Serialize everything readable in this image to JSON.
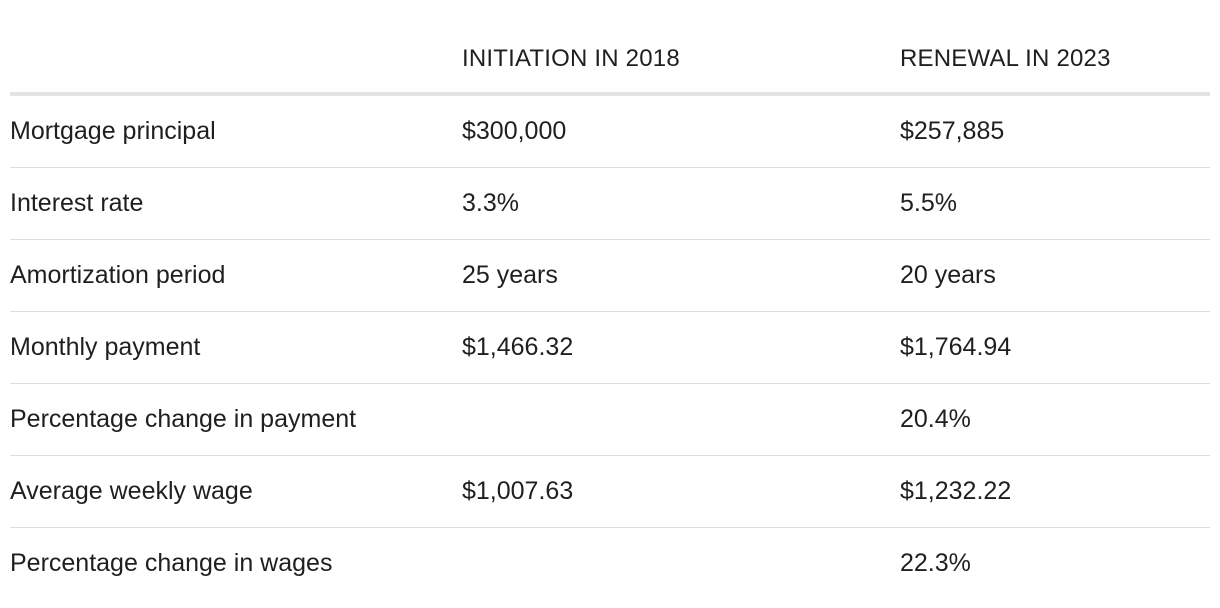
{
  "table": {
    "headers": [
      "",
      "INITIATION IN 2018",
      "RENEWAL IN 2023"
    ],
    "rows": [
      [
        "Mortgage principal",
        "$300,000",
        "$257,885"
      ],
      [
        "Interest rate",
        "3.3%",
        "5.5%"
      ],
      [
        "Amortization period",
        "25 years",
        "20 years"
      ],
      [
        "Monthly payment",
        "$1,466.32",
        "$1,764.94"
      ],
      [
        "Percentage change in payment",
        "",
        "20.4%"
      ],
      [
        "Average weekly wage",
        "$1,007.63",
        "$1,232.22"
      ],
      [
        "Percentage change in wages",
        "",
        "22.3%"
      ]
    ]
  }
}
